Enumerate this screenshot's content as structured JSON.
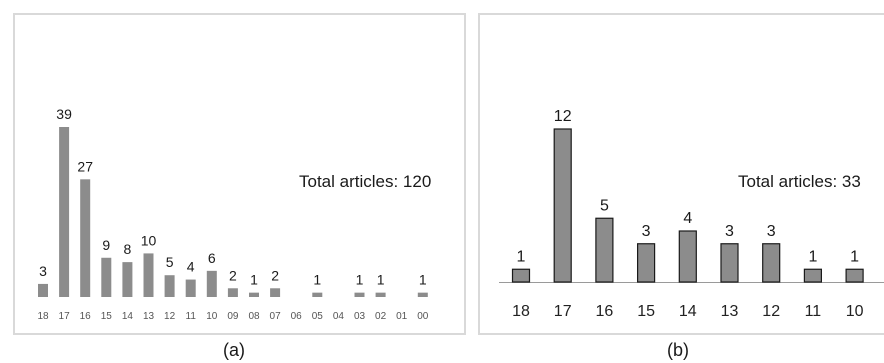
{
  "chart_data": [
    {
      "type": "bar",
      "panel_label": "(a)",
      "annotation": "Total articles: 120",
      "categories": [
        "18",
        "17",
        "16",
        "15",
        "14",
        "13",
        "12",
        "11",
        "10",
        "09",
        "08",
        "07",
        "06",
        "05",
        "04",
        "03",
        "02",
        "01",
        "00"
      ],
      "values": [
        3,
        39,
        27,
        9,
        8,
        10,
        5,
        4,
        6,
        2,
        1,
        2,
        0,
        1,
        0,
        1,
        1,
        0,
        1
      ],
      "data_labels": [
        "3",
        "39",
        "27",
        "9",
        "8",
        "10",
        "5",
        "4",
        "6",
        "2",
        "1",
        "2",
        "",
        "1",
        "",
        "1",
        "1",
        "",
        "1"
      ],
      "bar_color": "#8c8c8c",
      "ylim": [
        0,
        39
      ],
      "grid": false,
      "legend": "none"
    },
    {
      "type": "bar",
      "panel_label": "(b)",
      "annotation": "Total articles: 33",
      "categories": [
        "18",
        "17",
        "16",
        "15",
        "14",
        "13",
        "12",
        "11",
        "10"
      ],
      "values": [
        1,
        12,
        5,
        3,
        4,
        3,
        3,
        1,
        1
      ],
      "data_labels": [
        "1",
        "12",
        "5",
        "3",
        "4",
        "3",
        "3",
        "1",
        "1"
      ],
      "bar_color": "#8c8c8c",
      "bar_outline": "#1a1a1a",
      "ylim": [
        0,
        12
      ],
      "grid": false,
      "legend": "none"
    }
  ]
}
